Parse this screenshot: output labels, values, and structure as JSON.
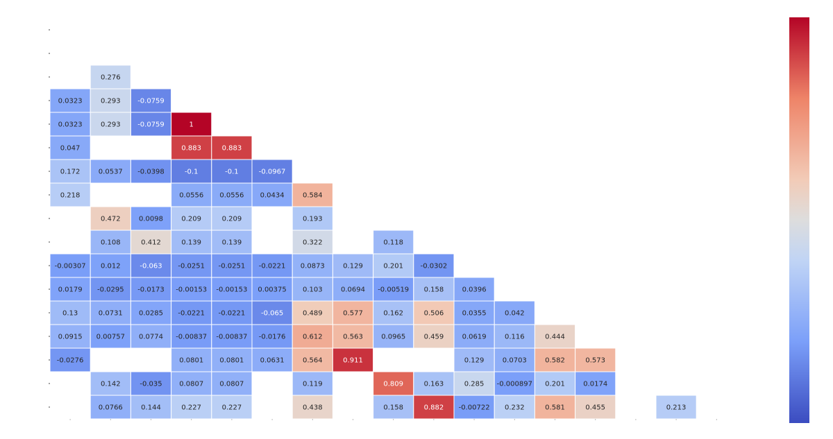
{
  "chart_data": {
    "type": "heatmap",
    "title": "",
    "xlabel": "",
    "ylabel": "",
    "colormap": "coolwarm",
    "value_range": [
      -0.25,
      1.0
    ],
    "colors": {
      "low": "#3b4cc0",
      "mid": "#dddddd",
      "high": "#b40426"
    },
    "grid": false,
    "colorbar": "right",
    "n_rows": 17,
    "n_cols": 17,
    "rows": [
      [],
      [],
      [
        null,
        0.276
      ],
      [
        0.0323,
        0.293,
        -0.0759
      ],
      [
        0.0323,
        0.293,
        -0.0759,
        1
      ],
      [
        0.047,
        null,
        null,
        0.883,
        0.883
      ],
      [
        0.172,
        0.0537,
        -0.0398,
        -0.1,
        -0.1,
        -0.0967
      ],
      [
        0.218,
        null,
        null,
        0.0556,
        0.0556,
        0.0434,
        0.584
      ],
      [
        null,
        0.472,
        0.0098,
        0.209,
        0.209,
        null,
        0.193
      ],
      [
        null,
        0.108,
        0.412,
        0.139,
        0.139,
        null,
        0.322,
        null,
        0.118
      ],
      [
        -0.00307,
        0.012,
        -0.063,
        -0.0251,
        -0.0251,
        -0.0221,
        0.0873,
        0.129,
        0.201,
        -0.0302
      ],
      [
        0.0179,
        -0.0295,
        -0.0173,
        -0.00153,
        -0.00153,
        0.00375,
        0.103,
        0.0694,
        -0.00519,
        0.158,
        0.0396
      ],
      [
        0.13,
        0.0731,
        0.0285,
        -0.0221,
        -0.0221,
        -0.065,
        0.489,
        0.577,
        0.162,
        0.506,
        0.0355,
        0.042
      ],
      [
        0.0915,
        0.00757,
        0.0774,
        -0.00837,
        -0.00837,
        -0.0176,
        0.612,
        0.563,
        0.0965,
        0.459,
        0.0619,
        0.116,
        0.444
      ],
      [
        -0.0276,
        null,
        null,
        0.0801,
        0.0801,
        0.0631,
        0.564,
        0.911,
        null,
        null,
        0.129,
        0.0703,
        0.582,
        0.573
      ],
      [
        null,
        0.142,
        -0.035,
        0.0807,
        0.0807,
        null,
        0.119,
        null,
        0.809,
        0.163,
        0.285,
        -0.000897,
        0.201,
        0.0174
      ],
      [
        null,
        0.0766,
        0.144,
        0.227,
        0.227,
        null,
        0.438,
        null,
        0.158,
        0.882,
        -0.00722,
        0.232,
        0.581,
        0.455,
        null,
        0.213
      ]
    ]
  }
}
